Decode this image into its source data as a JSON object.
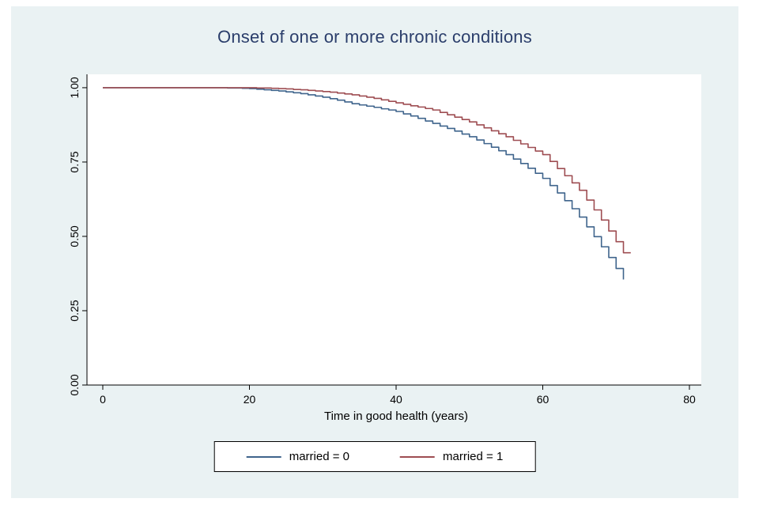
{
  "colors": {
    "background": "#eaf2f3",
    "plot_bg": "#ffffff",
    "title": "#2b3e6b",
    "axis": "#000000",
    "series0": "#3f648c",
    "series1": "#9e4d52",
    "legend_border": "#000000"
  },
  "chart_data": {
    "type": "line",
    "subtype": "kaplan-meier-step",
    "title": "Onset of one or more chronic conditions",
    "xlabel": "Time in good health (years)",
    "ylabel": "",
    "xlim": [
      0,
      80
    ],
    "ylim": [
      0,
      1
    ],
    "xticks": [
      "0",
      "20",
      "40",
      "60",
      "80"
    ],
    "yticks": [
      "0.00",
      "0.25",
      "0.50",
      "0.75",
      "1.00"
    ],
    "grid": false,
    "legend_position": "bottom",
    "series": [
      {
        "name": "married = 0",
        "color": "#3f648c",
        "x": [
          0,
          17,
          18,
          19,
          20,
          21,
          22,
          23,
          24,
          25,
          26,
          27,
          28,
          29,
          30,
          31,
          32,
          33,
          34,
          35,
          36,
          37,
          38,
          39,
          40,
          41,
          42,
          43,
          44,
          45,
          46,
          47,
          48,
          49,
          50,
          51,
          52,
          53,
          54,
          55,
          56,
          57,
          58,
          59,
          60,
          61,
          62,
          63,
          64,
          65,
          66,
          67,
          68,
          69,
          70,
          71
        ],
        "y": [
          1,
          0.999,
          0.999,
          0.998,
          0.997,
          0.995,
          0.993,
          0.991,
          0.989,
          0.986,
          0.983,
          0.98,
          0.976,
          0.972,
          0.968,
          0.963,
          0.958,
          0.952,
          0.946,
          0.942,
          0.938,
          0.934,
          0.929,
          0.925,
          0.92,
          0.912,
          0.905,
          0.897,
          0.888,
          0.88,
          0.871,
          0.863,
          0.854,
          0.844,
          0.835,
          0.824,
          0.812,
          0.8,
          0.788,
          0.775,
          0.76,
          0.745,
          0.729,
          0.712,
          0.695,
          0.671,
          0.646,
          0.62,
          0.593,
          0.565,
          0.532,
          0.499,
          0.465,
          0.429,
          0.392,
          0.355
        ]
      },
      {
        "name": "married = 1",
        "color": "#9e4d52",
        "x": [
          0,
          21,
          22,
          23,
          24,
          25,
          26,
          27,
          28,
          29,
          30,
          31,
          32,
          33,
          34,
          35,
          36,
          37,
          38,
          39,
          40,
          41,
          42,
          43,
          44,
          45,
          46,
          47,
          48,
          49,
          50,
          51,
          52,
          53,
          54,
          55,
          56,
          57,
          58,
          59,
          60,
          61,
          62,
          63,
          64,
          65,
          66,
          67,
          68,
          69,
          70,
          71,
          72
        ],
        "y": [
          1,
          0.999,
          0.999,
          0.998,
          0.997,
          0.996,
          0.994,
          0.993,
          0.991,
          0.989,
          0.987,
          0.985,
          0.982,
          0.979,
          0.976,
          0.972,
          0.968,
          0.964,
          0.959,
          0.954,
          0.949,
          0.944,
          0.939,
          0.935,
          0.93,
          0.925,
          0.917,
          0.909,
          0.901,
          0.893,
          0.885,
          0.875,
          0.865,
          0.855,
          0.845,
          0.835,
          0.823,
          0.811,
          0.799,
          0.787,
          0.775,
          0.752,
          0.728,
          0.704,
          0.68,
          0.655,
          0.622,
          0.589,
          0.555,
          0.518,
          0.482,
          0.445,
          0.445
        ]
      }
    ]
  },
  "legend": {
    "items": [
      {
        "label": "married = 0"
      },
      {
        "label": "married = 1"
      }
    ]
  }
}
